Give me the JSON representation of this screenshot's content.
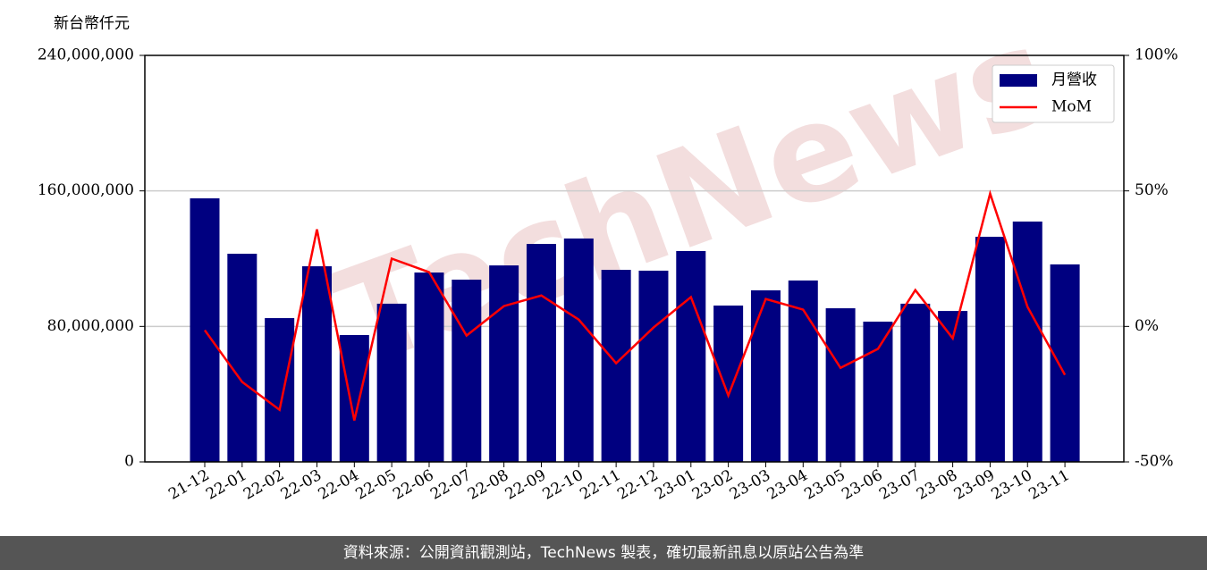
{
  "chart_data": {
    "type": "bar-line",
    "y_axis_label": "新台幣仟元",
    "watermark": "TechNews",
    "categories": [
      "21-12",
      "22-01",
      "22-02",
      "22-03",
      "22-04",
      "22-05",
      "22-06",
      "22-07",
      "22-08",
      "22-09",
      "22-10",
      "22-11",
      "22-12",
      "23-01",
      "23-02",
      "23-03",
      "23-04",
      "23-05",
      "23-06",
      "23-07",
      "23-08",
      "23-09",
      "23-10",
      "23-11"
    ],
    "series": [
      {
        "name": "月營收",
        "type": "bar",
        "color": "#000080",
        "values": [
          155600000,
          122900000,
          84900000,
          115500000,
          74900000,
          93400000,
          111800000,
          107600000,
          116000000,
          128700000,
          131900000,
          113400000,
          112900000,
          124500000,
          92300000,
          101300000,
          107100000,
          90700000,
          82800000,
          93400000,
          89100000,
          132900000,
          141900000,
          116600000
        ]
      },
      {
        "name": "MoM",
        "type": "line",
        "axis": "y2",
        "color": "#ff0000",
        "values": [
          -1.4,
          -20.5,
          -30.8,
          35.8,
          -34.7,
          25.0,
          20.0,
          -3.4,
          7.5,
          11.4,
          2.5,
          -13.6,
          -0.4,
          10.8,
          -25.5,
          10.1,
          6.2,
          -15.3,
          -8.3,
          13.4,
          -4.4,
          49.0,
          7.2,
          -17.9
        ]
      }
    ],
    "ylim": [
      0,
      240000000
    ],
    "yticks": [
      {
        "value": 0,
        "label": "0"
      },
      {
        "value": 80000000,
        "label": "80,000,000"
      },
      {
        "value": 160000000,
        "label": "160,000,000"
      },
      {
        "value": 240000000,
        "label": "240,000,000"
      }
    ],
    "y2lim": [
      -50,
      100
    ],
    "y2ticks": [
      {
        "value": -50,
        "label": "-50%"
      },
      {
        "value": 0,
        "label": "0%"
      },
      {
        "value": 50,
        "label": "50%"
      },
      {
        "value": 100,
        "label": "100%"
      }
    ],
    "grid": true,
    "legend": "upper right"
  },
  "footer": "資料來源：公開資訊觀測站，TechNews 製表，確切最新訊息以原站公告為準"
}
